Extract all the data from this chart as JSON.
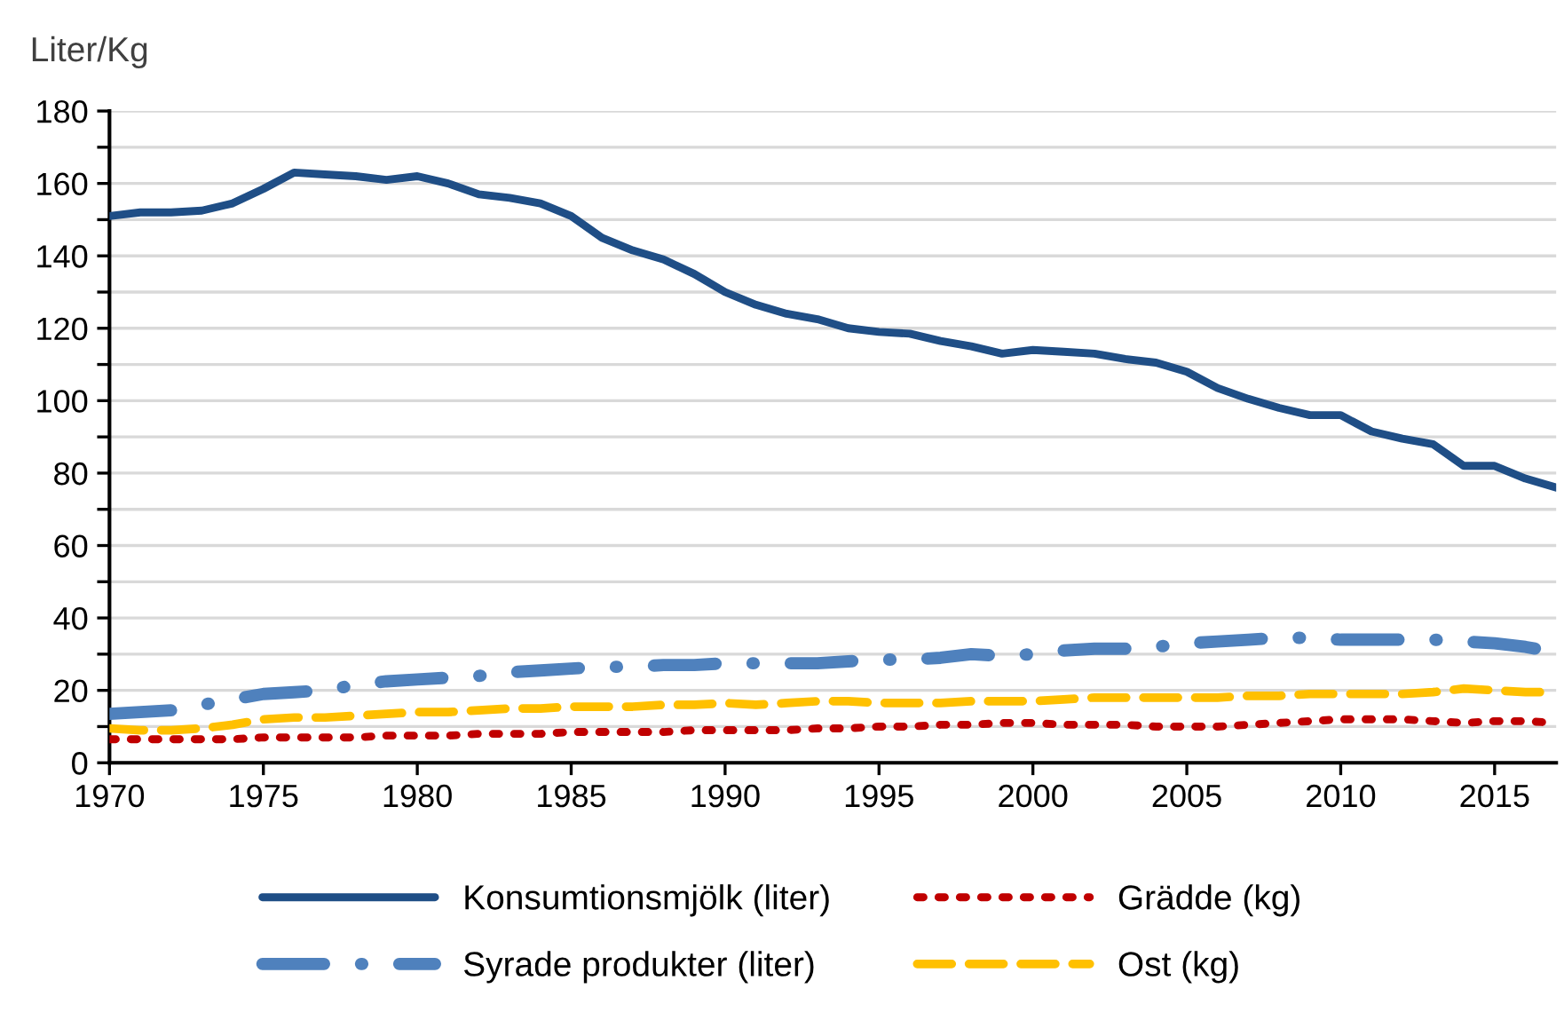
{
  "chart_data": {
    "type": "line",
    "ylabel": "Liter/Kg",
    "x": [
      1970,
      1971,
      1972,
      1973,
      1974,
      1975,
      1976,
      1977,
      1978,
      1979,
      1980,
      1981,
      1982,
      1983,
      1984,
      1985,
      1986,
      1987,
      1988,
      1989,
      1990,
      1991,
      1992,
      1993,
      1994,
      1995,
      1996,
      1997,
      1998,
      1999,
      2000,
      2001,
      2002,
      2003,
      2004,
      2005,
      2006,
      2007,
      2008,
      2009,
      2010,
      2011,
      2012,
      2013,
      2014,
      2015,
      2016,
      2017
    ],
    "series": [
      {
        "name": "Konsumtionsmjölk (liter)",
        "color": "#1f4e86",
        "line_style": "solid",
        "values": [
          151,
          152,
          152,
          152.5,
          154.5,
          158.5,
          163,
          162.5,
          162,
          161,
          162,
          160,
          157,
          156,
          154.5,
          151,
          145,
          141.5,
          139,
          135,
          130,
          126.5,
          124,
          122.5,
          120,
          119,
          118.5,
          116.5,
          115,
          113,
          114,
          113.5,
          113,
          111.5,
          110.5,
          108,
          103.5,
          100.5,
          98,
          96,
          96,
          91.5,
          89.5,
          88,
          82,
          82,
          78.5,
          76
        ]
      },
      {
        "name": "Syrade produkter (liter)",
        "color": "#4f81bd",
        "line_style": "dashdot",
        "values": [
          13.5,
          14,
          14.5,
          16,
          17.5,
          19,
          19.5,
          20,
          21.5,
          22.5,
          23,
          23.5,
          24,
          25,
          25.5,
          26,
          26.5,
          26.5,
          27,
          27,
          27.5,
          27.5,
          27.5,
          27.5,
          28,
          28.5,
          28.5,
          29,
          30,
          29.5,
          30,
          31,
          31.5,
          31.5,
          32,
          33,
          33.5,
          34,
          34.5,
          34.5,
          34,
          34,
          34,
          34,
          33.5,
          33,
          32,
          30.5
        ]
      },
      {
        "name": "Grädde (kg)",
        "color": "#c00000",
        "line_style": "dotted",
        "values": [
          6.5,
          6.5,
          6.5,
          6.5,
          6.5,
          7,
          7,
          7,
          7,
          7.5,
          7.5,
          7.5,
          8,
          8,
          8,
          8.5,
          8.5,
          8.5,
          8.5,
          9,
          9,
          9,
          9,
          9.5,
          9.5,
          10,
          10,
          10.5,
          10.5,
          11,
          11,
          10.5,
          10.5,
          10.5,
          10,
          10,
          10,
          10.5,
          11,
          11.5,
          12,
          12,
          12,
          11.5,
          11,
          11.5,
          11.5,
          11
        ]
      },
      {
        "name": "Ost (kg)",
        "color": "#ffc000",
        "line_style": "dashed",
        "values": [
          9.5,
          9,
          9,
          9.5,
          10.5,
          12,
          12.5,
          12.5,
          13,
          13.5,
          14,
          14,
          14.5,
          15,
          15,
          15.5,
          15.5,
          15.5,
          16,
          16,
          16.5,
          16,
          16.5,
          17,
          17,
          16.5,
          16.5,
          16.5,
          17,
          17,
          17,
          17.5,
          18,
          18,
          18,
          18,
          18,
          18.5,
          18.5,
          19,
          19,
          19,
          19,
          19.5,
          20.5,
          20,
          19.5,
          19.5
        ]
      }
    ],
    "xlim": [
      1970,
      2017
    ],
    "xticks": [
      1970,
      1975,
      1980,
      1985,
      1990,
      1995,
      2000,
      2005,
      2010,
      2015
    ],
    "ylim": [
      0,
      180
    ],
    "yticks": [
      0,
      {
        "value": 10,
        "label": null
      },
      20,
      {
        "value": 30,
        "label": null
      },
      40,
      {
        "value": 50,
        "label": null
      },
      60,
      {
        "value": 70,
        "label": null
      },
      80,
      {
        "value": 90,
        "label": null
      },
      100,
      {
        "value": 110,
        "label": null
      },
      120,
      {
        "value": 130,
        "label": null
      },
      140,
      {
        "value": 150,
        "label": null
      },
      160,
      {
        "value": 170,
        "label": null
      },
      180
    ],
    "grid": "y",
    "legend": "bottom"
  }
}
